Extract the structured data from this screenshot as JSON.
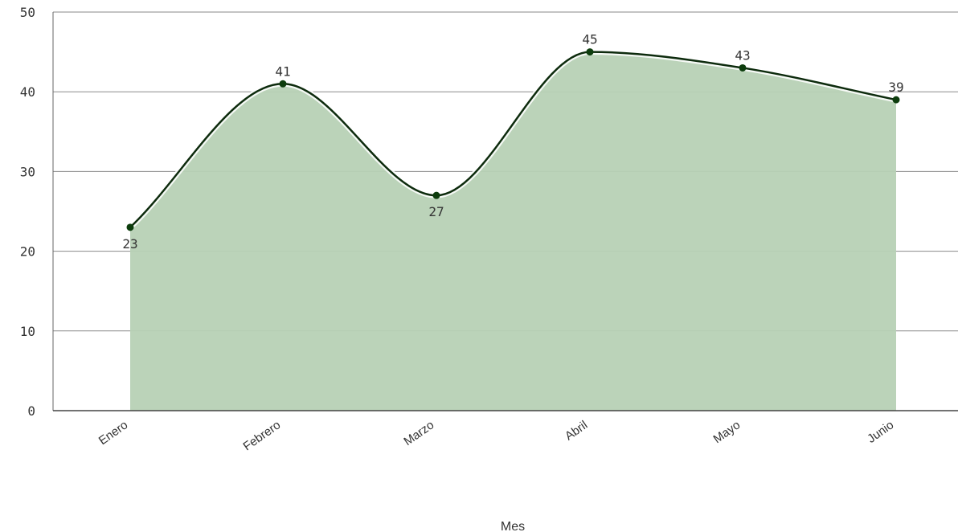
{
  "chart_data": {
    "type": "area",
    "categories": [
      "Enero",
      "Febrero",
      "Marzo",
      "Abril",
      "Mayo",
      "Junio"
    ],
    "values": [
      23,
      41,
      27,
      45,
      43,
      39
    ],
    "xlabel": "Mes",
    "ylabel": "",
    "ylim": [
      0,
      50
    ],
    "yticks": [
      "0",
      "10",
      "20",
      "30",
      "40",
      "50"
    ],
    "data_labels": [
      "23",
      "41",
      "27",
      "45",
      "43",
      "39"
    ],
    "grid": true,
    "legend": "none",
    "colors": {
      "line": "#0d2b0d",
      "fill": "#b7d1b5",
      "glow": "#ffffff",
      "marker": "#0d3d0d",
      "grid": "#8a8a8a"
    }
  }
}
